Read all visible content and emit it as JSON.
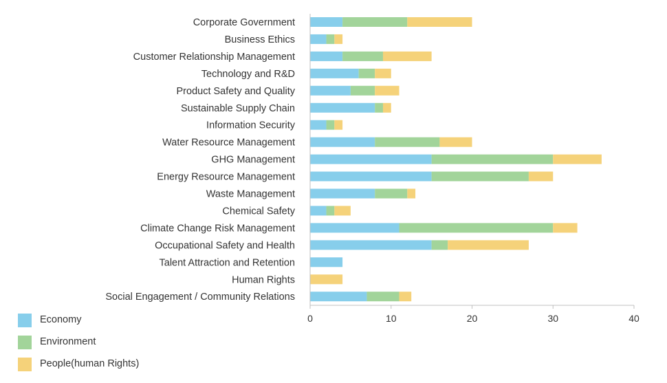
{
  "chart_data": {
    "type": "bar",
    "orientation": "horizontal",
    "stacked": true,
    "title": "",
    "xlabel": "",
    "ylabel": "",
    "xlim": [
      0,
      40
    ],
    "xticks": [
      0,
      10,
      20,
      30,
      40
    ],
    "grid": false,
    "legend_position": "bottom-left",
    "categories": [
      "Corporate Government",
      "Business Ethics",
      "Customer Relationship Management",
      "Technology and R&D",
      "Product Safety and Quality",
      "Sustainable Supply Chain",
      "Information Security",
      "Water Resource Management",
      "GHG Management",
      "Energy Resource Management",
      "Waste Management",
      "Chemical Safety",
      "Climate Change Risk Management",
      "Occupational Safety and Health",
      "Talent Attraction and Retention",
      "Human Rights",
      "Social Engagement / Community Relations"
    ],
    "series": [
      {
        "name": "Economy",
        "color": "#87ceeb",
        "values": [
          4,
          2,
          4,
          6,
          5,
          8,
          2,
          8,
          15,
          15,
          8,
          2,
          11,
          15,
          4,
          0,
          7
        ]
      },
      {
        "name": "Environment",
        "color": "#a2d49a",
        "values": [
          8,
          1,
          5,
          2,
          3,
          1,
          1,
          8,
          15,
          12,
          4,
          1,
          19,
          2,
          0,
          0,
          4
        ]
      },
      {
        "name": "People(human Rights)",
        "color": "#f5d27a",
        "values": [
          8,
          1,
          6,
          2,
          3,
          1,
          1,
          4,
          6,
          3,
          1,
          2,
          3,
          10,
          0,
          4,
          1.5
        ]
      }
    ]
  }
}
